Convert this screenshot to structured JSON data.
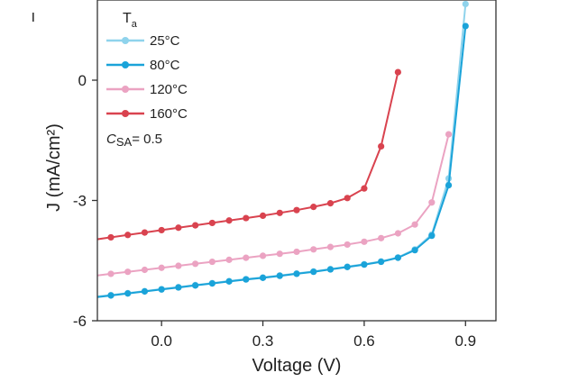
{
  "chart_data": {
    "type": "line",
    "xlabel": "Voltage (V)",
    "ylabel": "J (mA/cm²)",
    "xlim": [
      -0.19,
      0.99
    ],
    "ylim": [
      -6,
      2.0
    ],
    "x_ticks": [
      0.0,
      0.3,
      0.6,
      0.9
    ],
    "x_tick_labels": [
      "0.0",
      "0.3",
      "0.6",
      "0.9"
    ],
    "y_ticks": [
      0,
      -3,
      -6
    ],
    "y_tick_labels": [
      "0",
      "-3",
      "-6"
    ],
    "legend": {
      "title_main": "T",
      "title_sub": "a",
      "placement": "top-left"
    },
    "annotation": {
      "italic": "C",
      "sub": "SA",
      "rest": "= 0.5"
    },
    "series": [
      {
        "name": "25°C",
        "color": "#8fd3ec",
        "x": [
          -0.2,
          -0.15,
          -0.1,
          -0.05,
          0.0,
          0.05,
          0.1,
          0.15,
          0.2,
          0.25,
          0.3,
          0.35,
          0.4,
          0.45,
          0.5,
          0.55,
          0.6,
          0.65,
          0.7,
          0.75,
          0.8,
          0.85,
          0.9
        ],
        "y": [
          -5.4,
          -5.36,
          -5.31,
          -5.26,
          -5.21,
          -5.16,
          -5.11,
          -5.06,
          -5.01,
          -4.96,
          -4.92,
          -4.87,
          -4.82,
          -4.77,
          -4.71,
          -4.65,
          -4.59,
          -4.52,
          -4.42,
          -4.22,
          -3.85,
          -2.45,
          1.9
        ]
      },
      {
        "name": "80°C",
        "color": "#1aa3d9",
        "x": [
          -0.2,
          -0.15,
          -0.1,
          -0.05,
          0.0,
          0.05,
          0.1,
          0.15,
          0.2,
          0.25,
          0.3,
          0.35,
          0.4,
          0.45,
          0.5,
          0.55,
          0.6,
          0.65,
          0.7,
          0.75,
          0.8,
          0.85,
          0.9
        ],
        "y": [
          -5.42,
          -5.37,
          -5.32,
          -5.27,
          -5.22,
          -5.17,
          -5.12,
          -5.07,
          -5.02,
          -4.97,
          -4.93,
          -4.88,
          -4.83,
          -4.78,
          -4.72,
          -4.66,
          -4.6,
          -4.53,
          -4.43,
          -4.24,
          -3.88,
          -2.62,
          1.35
        ]
      },
      {
        "name": "120°C",
        "color": "#eba3c2",
        "x": [
          -0.2,
          -0.15,
          -0.1,
          -0.05,
          0.0,
          0.05,
          0.1,
          0.15,
          0.2,
          0.25,
          0.3,
          0.35,
          0.4,
          0.45,
          0.5,
          0.55,
          0.6,
          0.65,
          0.7,
          0.75,
          0.8,
          0.85
        ],
        "y": [
          -4.88,
          -4.83,
          -4.78,
          -4.73,
          -4.68,
          -4.63,
          -4.58,
          -4.53,
          -4.48,
          -4.43,
          -4.38,
          -4.33,
          -4.28,
          -4.22,
          -4.16,
          -4.1,
          -4.03,
          -3.94,
          -3.82,
          -3.6,
          -3.05,
          -1.35
        ]
      },
      {
        "name": "160°C",
        "color": "#d9434f",
        "x": [
          -0.2,
          -0.15,
          -0.1,
          -0.05,
          0.0,
          0.05,
          0.1,
          0.15,
          0.2,
          0.25,
          0.3,
          0.35,
          0.4,
          0.45,
          0.5,
          0.55,
          0.6,
          0.65,
          0.7
        ],
        "y": [
          -3.98,
          -3.92,
          -3.86,
          -3.8,
          -3.74,
          -3.68,
          -3.62,
          -3.56,
          -3.5,
          -3.44,
          -3.38,
          -3.31,
          -3.24,
          -3.16,
          -3.07,
          -2.94,
          -2.7,
          -1.65,
          0.2
        ]
      }
    ]
  }
}
